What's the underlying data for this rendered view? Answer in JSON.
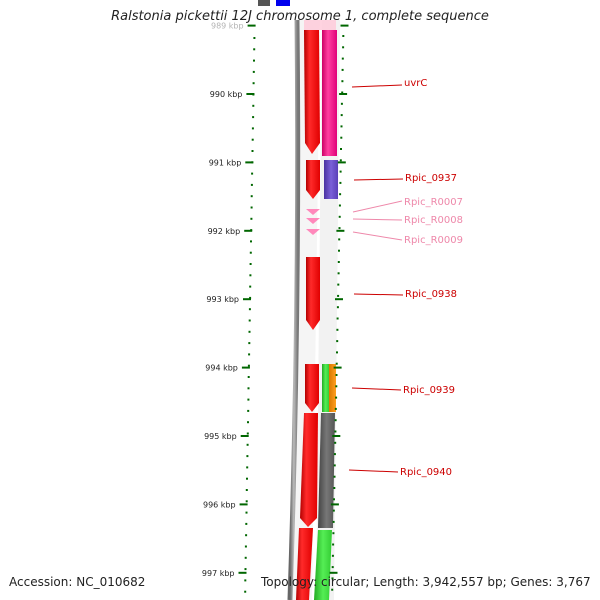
{
  "title": "Ralstonia pickettii 12J chromosome 1, complete sequence",
  "accession": "Accession: NC_010682",
  "topology": "Topology: circular; Length: 3,942,557 bp; Genes: 3,767",
  "colors": {
    "backbone": "#888888",
    "cds": "#ff0000",
    "rrna": "#ff88bb",
    "tick": "#006600",
    "label_cds": "#cc0000",
    "label_rna": "#ee88aa"
  },
  "ticks": [
    {
      "kbp": 989,
      "label": "989 kbp",
      "faded": true
    },
    {
      "kbp": 990,
      "label": "990 kbp"
    },
    {
      "kbp": 991,
      "label": "991 kbp"
    },
    {
      "kbp": 992,
      "label": "992 kbp"
    },
    {
      "kbp": 993,
      "label": "993 kbp"
    },
    {
      "kbp": 994,
      "label": "994 kbp"
    },
    {
      "kbp": 995,
      "label": "995 kbp"
    },
    {
      "kbp": 996,
      "label": "996 kbp"
    },
    {
      "kbp": 997,
      "label": "997 kbp"
    }
  ],
  "genes": [
    {
      "name": "uvrC",
      "type": "cds"
    },
    {
      "name": "Rpic_0937",
      "type": "cds"
    },
    {
      "name": "Rpic_R0007",
      "type": "rna"
    },
    {
      "name": "Rpic_R0008",
      "type": "rna"
    },
    {
      "name": "Rpic_R0009",
      "type": "rna"
    },
    {
      "name": "Rpic_0938",
      "type": "cds"
    },
    {
      "name": "Rpic_0939",
      "type": "cds"
    },
    {
      "name": "Rpic_0940",
      "type": "cds"
    }
  ]
}
